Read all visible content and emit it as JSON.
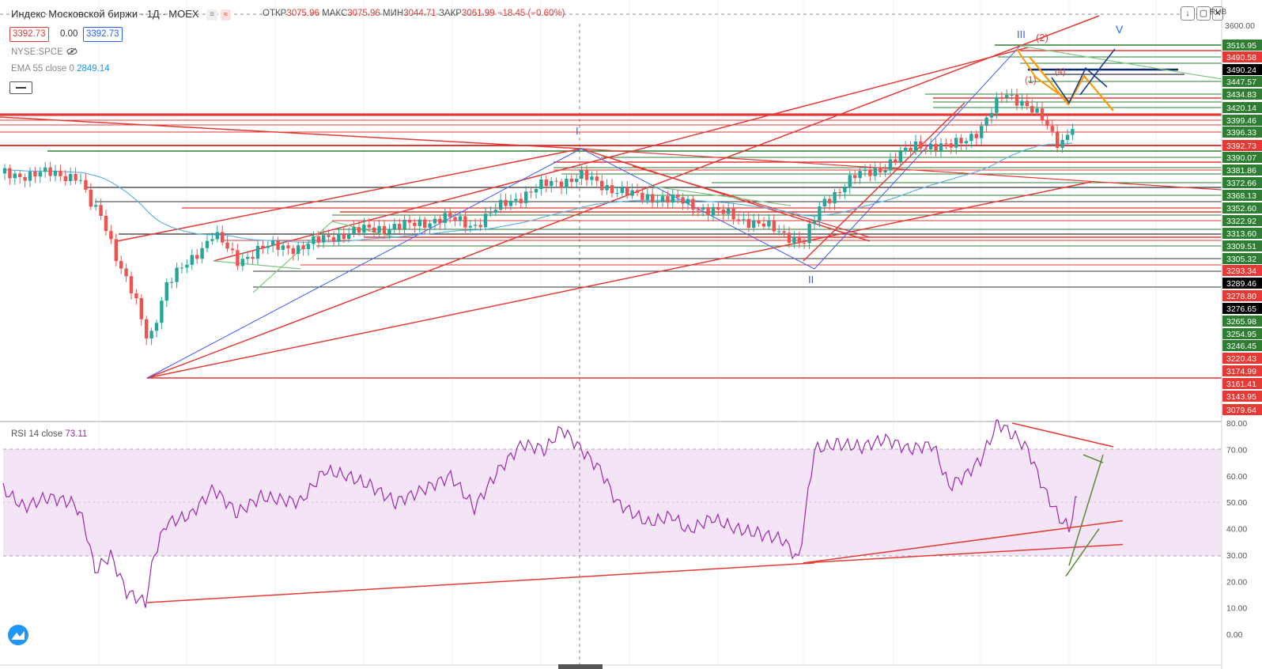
{
  "header": {
    "symbol_title": "Индекс Московской биржи · 1Д · MOEX",
    "ohlc": {
      "open_label": "ОТКР",
      "open": "3075.96",
      "high_label": "МАКС",
      "high": "3075.96",
      "low_label": "МИН",
      "low": "3044.71",
      "close_label": "ЗАКР",
      "close": "3061.99",
      "change": "−18.45 (−0.60%)"
    },
    "sell_price": "3392.73",
    "spread": "0.00",
    "buy_price": "3392.73",
    "compare_symbol": "NYSE:SPCE",
    "ema_label": "EMA 55 close 0",
    "ema_value": "2849.14",
    "currency": "RUB",
    "toolbar_icons": [
      "arrow-down-icon",
      "restore-icon",
      "close-icon"
    ]
  },
  "price_axis": {
    "top_label": "3600.00",
    "labels": [
      {
        "text": "3516.95",
        "bg": "#2e7d32",
        "fg": "#ffffff"
      },
      {
        "text": "3490.58",
        "bg": "#e53935",
        "fg": "#ffffff"
      },
      {
        "text": "3490.24",
        "bg": "#000000",
        "fg": "#ffffff"
      },
      {
        "text": "3447.57",
        "bg": "#2e7d32",
        "fg": "#ffffff"
      },
      {
        "text": "3434.83",
        "bg": "#2e7d32",
        "fg": "#ffffff"
      },
      {
        "text": "3420.14",
        "bg": "#2e7d32",
        "fg": "#ffffff"
      },
      {
        "text": "3399.46",
        "bg": "#2e7d32",
        "fg": "#ffffff"
      },
      {
        "text": "3396.33",
        "bg": "#2e7d32",
        "fg": "#ffffff"
      },
      {
        "text": "3392.73",
        "bg": "#e53935",
        "fg": "#ffffff"
      },
      {
        "text": "3390.07",
        "bg": "#2e7d32",
        "fg": "#ffffff"
      },
      {
        "text": "3381.86",
        "bg": "#2e7d32",
        "fg": "#ffffff"
      },
      {
        "text": "3372.66",
        "bg": "#2e7d32",
        "fg": "#ffffff"
      },
      {
        "text": "3368.13",
        "bg": "#2e7d32",
        "fg": "#ffffff"
      },
      {
        "text": "3352.60",
        "bg": "#2e7d32",
        "fg": "#ffffff"
      },
      {
        "text": "3322.92",
        "bg": "#2e7d32",
        "fg": "#ffffff"
      },
      {
        "text": "3313.60",
        "bg": "#2e7d32",
        "fg": "#ffffff"
      },
      {
        "text": "3309.51",
        "bg": "#2e7d32",
        "fg": "#ffffff"
      },
      {
        "text": "3305.32",
        "bg": "#2e7d32",
        "fg": "#ffffff"
      },
      {
        "text": "3293.34",
        "bg": "#e53935",
        "fg": "#ffffff"
      },
      {
        "text": "3289.46",
        "bg": "#000000",
        "fg": "#ffffff"
      },
      {
        "text": "3278.80",
        "bg": "#e53935",
        "fg": "#ffffff"
      },
      {
        "text": "3276.65",
        "bg": "#000000",
        "fg": "#ffffff"
      },
      {
        "text": "3265.98",
        "bg": "#2e7d32",
        "fg": "#ffffff"
      },
      {
        "text": "3254.95",
        "bg": "#2e7d32",
        "fg": "#ffffff"
      },
      {
        "text": "3246.45",
        "bg": "#2e7d32",
        "fg": "#ffffff"
      },
      {
        "text": "3220.43",
        "bg": "#e53935",
        "fg": "#ffffff"
      },
      {
        "text": "3174.99",
        "bg": "#e53935",
        "fg": "#ffffff"
      },
      {
        "text": "3161.41",
        "bg": "#e53935",
        "fg": "#ffffff"
      },
      {
        "text": "3143.95",
        "bg": "#e53935",
        "fg": "#ffffff"
      },
      {
        "text": "3079.64",
        "bg": "#e53935",
        "fg": "#ffffff"
      }
    ]
  },
  "rsi": {
    "label": "RSI 14 close",
    "value": "73.11",
    "axis_labels": [
      "80.00",
      "70.00",
      "60.00",
      "50.00",
      "40.00",
      "30.00",
      "20.00",
      "10.00",
      "0.00"
    ]
  },
  "wave_labels": {
    "w1": "I",
    "w2": "II",
    "w3": "III",
    "w5": "V",
    "sub1": "(1)",
    "sub2": "(2)",
    "sub4": "(4)"
  },
  "colors": {
    "up": "#26a69a",
    "down": "#ef5350",
    "ema": "#5eb5e6",
    "rsi": "#9c27b0",
    "rsi_band": "#f3e5f5",
    "trend": "#f23645"
  }
}
